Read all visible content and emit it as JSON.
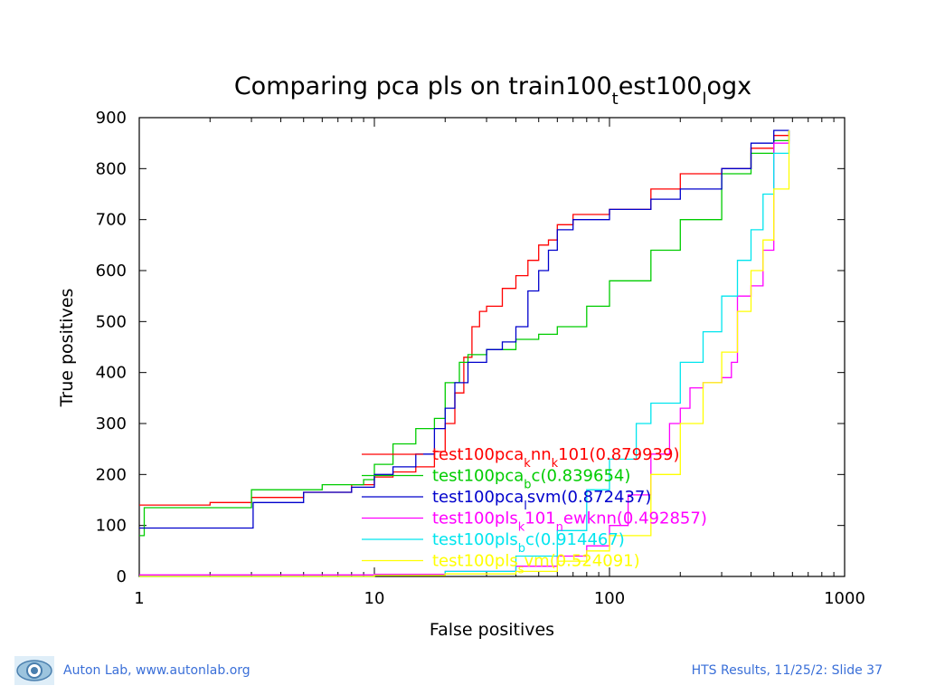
{
  "chart_data": {
    "type": "line",
    "title_parts": [
      "Comparing pca pls on train100",
      "t",
      "est100",
      "l",
      "ogx"
    ],
    "xlabel": "False positives",
    "ylabel": "True positives",
    "xscale": "log",
    "xlim": [
      1,
      1000
    ],
    "ylim": [
      0,
      900
    ],
    "xticks": [
      1,
      10,
      100,
      1000
    ],
    "xtick_labels": [
      "1",
      "10",
      "100",
      "1000"
    ],
    "yticks": [
      0,
      100,
      200,
      300,
      400,
      500,
      600,
      700,
      800,
      900
    ],
    "ytick_labels": [
      "0",
      "100",
      "200",
      "300",
      "400",
      "500",
      "600",
      "700",
      "800",
      "900"
    ],
    "grid": false,
    "legend_placement": "lower-center",
    "series": [
      {
        "name_parts": [
          "test100pca",
          "k",
          "nn",
          "k",
          "101(0.879939)"
        ],
        "color": "#ff0000",
        "points": [
          [
            1,
            140
          ],
          [
            2,
            145
          ],
          [
            3,
            155
          ],
          [
            5,
            165
          ],
          [
            8,
            180
          ],
          [
            10,
            195
          ],
          [
            12,
            205
          ],
          [
            15,
            215
          ],
          [
            18,
            245
          ],
          [
            20,
            300
          ],
          [
            22,
            360
          ],
          [
            24,
            430
          ],
          [
            26,
            490
          ],
          [
            28,
            520
          ],
          [
            30,
            530
          ],
          [
            35,
            565
          ],
          [
            40,
            590
          ],
          [
            45,
            620
          ],
          [
            50,
            650
          ],
          [
            55,
            660
          ],
          [
            60,
            690
          ],
          [
            70,
            710
          ],
          [
            100,
            720
          ],
          [
            150,
            760
          ],
          [
            200,
            790
          ],
          [
            300,
            800
          ],
          [
            400,
            840
          ],
          [
            500,
            865
          ],
          [
            580,
            875
          ]
        ]
      },
      {
        "name_parts": [
          "test100pca",
          "b",
          "c(0.839654)"
        ],
        "color": "#00cc00",
        "points": [
          [
            1,
            80
          ],
          [
            1.05,
            135
          ],
          [
            3,
            170
          ],
          [
            6,
            180
          ],
          [
            9,
            190
          ],
          [
            10,
            220
          ],
          [
            12,
            260
          ],
          [
            15,
            290
          ],
          [
            18,
            310
          ],
          [
            20,
            380
          ],
          [
            23,
            420
          ],
          [
            25,
            435
          ],
          [
            30,
            445
          ],
          [
            40,
            465
          ],
          [
            50,
            475
          ],
          [
            60,
            490
          ],
          [
            80,
            530
          ],
          [
            100,
            580
          ],
          [
            150,
            640
          ],
          [
            200,
            700
          ],
          [
            300,
            790
          ],
          [
            400,
            830
          ],
          [
            500,
            855
          ],
          [
            580,
            875
          ]
        ]
      },
      {
        "name_parts": [
          "test100pca",
          "l",
          "svm(0.872437)"
        ],
        "color": "#0000cc",
        "points": [
          [
            1,
            95
          ],
          [
            3,
            95
          ],
          [
            3.05,
            145
          ],
          [
            5,
            165
          ],
          [
            8,
            175
          ],
          [
            10,
            200
          ],
          [
            12,
            215
          ],
          [
            15,
            240
          ],
          [
            18,
            290
          ],
          [
            20,
            330
          ],
          [
            22,
            380
          ],
          [
            25,
            420
          ],
          [
            30,
            445
          ],
          [
            35,
            460
          ],
          [
            40,
            490
          ],
          [
            45,
            560
          ],
          [
            50,
            600
          ],
          [
            55,
            640
          ],
          [
            60,
            680
          ],
          [
            70,
            700
          ],
          [
            100,
            720
          ],
          [
            150,
            740
          ],
          [
            200,
            760
          ],
          [
            300,
            800
          ],
          [
            400,
            850
          ],
          [
            500,
            875
          ],
          [
            580,
            875
          ]
        ]
      },
      {
        "name_parts": [
          "test100pls",
          "k",
          "101",
          "n",
          "ewknn(0.492857)"
        ],
        "color": "#ff00ff",
        "points": [
          [
            1,
            3
          ],
          [
            10,
            4
          ],
          [
            20,
            10
          ],
          [
            40,
            20
          ],
          [
            60,
            40
          ],
          [
            80,
            60
          ],
          [
            100,
            100
          ],
          [
            120,
            160
          ],
          [
            150,
            240
          ],
          [
            180,
            300
          ],
          [
            200,
            330
          ],
          [
            220,
            370
          ],
          [
            250,
            380
          ],
          [
            300,
            390
          ],
          [
            330,
            420
          ],
          [
            350,
            550
          ],
          [
            400,
            570
          ],
          [
            450,
            640
          ],
          [
            500,
            850
          ],
          [
            580,
            875
          ]
        ]
      },
      {
        "name_parts": [
          "test100pls",
          "b",
          "c(0.914467)"
        ],
        "color": "#00e5ee",
        "points": [
          [
            1,
            0
          ],
          [
            10,
            2
          ],
          [
            20,
            10
          ],
          [
            40,
            40
          ],
          [
            60,
            90
          ],
          [
            80,
            170
          ],
          [
            100,
            230
          ],
          [
            130,
            300
          ],
          [
            150,
            340
          ],
          [
            200,
            420
          ],
          [
            250,
            480
          ],
          [
            300,
            550
          ],
          [
            350,
            620
          ],
          [
            400,
            680
          ],
          [
            450,
            750
          ],
          [
            500,
            830
          ],
          [
            580,
            875
          ]
        ]
      },
      {
        "name_parts": [
          "test100pls",
          "s",
          "vm(0.524091)"
        ],
        "color": "#ffff00",
        "points": [
          [
            1,
            0
          ],
          [
            10,
            2
          ],
          [
            20,
            5
          ],
          [
            40,
            10
          ],
          [
            60,
            30
          ],
          [
            80,
            50
          ],
          [
            100,
            80
          ],
          [
            150,
            200
          ],
          [
            200,
            300
          ],
          [
            250,
            380
          ],
          [
            300,
            440
          ],
          [
            350,
            520
          ],
          [
            400,
            600
          ],
          [
            450,
            660
          ],
          [
            500,
            760
          ],
          [
            580,
            875
          ]
        ]
      }
    ]
  },
  "footer": {
    "left_text": "Auton Lab, www.autonlab.org",
    "right_text": "HTS Results, 11/25/2: Slide 37",
    "logo_icon": "eye-logo-icon"
  }
}
